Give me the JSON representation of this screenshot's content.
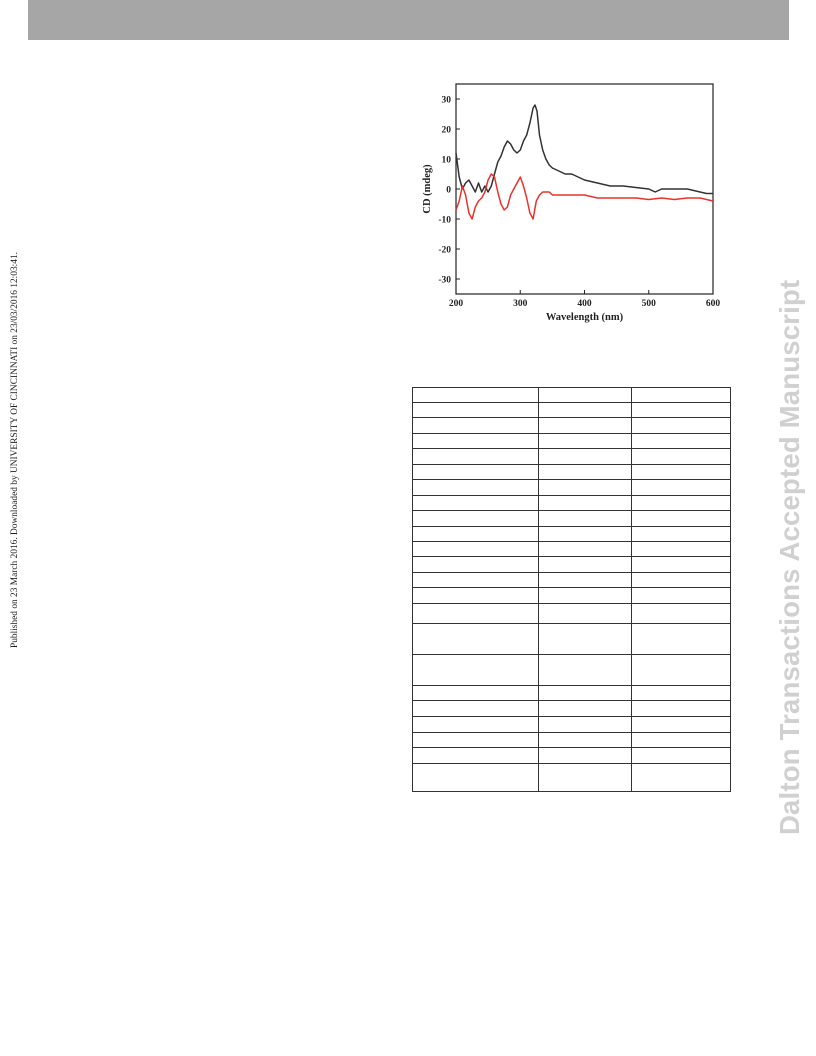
{
  "side_note": "Published on 23 March 2016. Downloaded by UNIVERSITY OF CINCINNATI on 23/03/2016 12:03:41.",
  "watermark": "Dalton Transactions Accepted Manuscript",
  "colors": {
    "header_bar": "#a6a6a6",
    "watermark": "#d0d0d0",
    "series_black": "#333333",
    "series_red": "#e8332c"
  },
  "chart_data": {
    "type": "line",
    "title": "",
    "xlabel": "Wavelength (nm)",
    "ylabel": "CD (mdeg)",
    "xlim": [
      200,
      600
    ],
    "ylim": [
      -35,
      35
    ],
    "xticks": [
      200,
      300,
      400,
      500,
      600
    ],
    "yticks": [
      -30,
      -20,
      -10,
      0,
      10,
      20,
      30
    ],
    "grid": false,
    "legend": "none",
    "series": [
      {
        "color": "#333333",
        "x": [
          200,
          205,
          210,
          215,
          220,
          225,
          230,
          235,
          240,
          245,
          250,
          255,
          260,
          265,
          270,
          275,
          280,
          285,
          290,
          295,
          300,
          305,
          310,
          315,
          320,
          323,
          326,
          330,
          335,
          340,
          345,
          350,
          360,
          370,
          380,
          390,
          400,
          420,
          440,
          460,
          480,
          500,
          510,
          520,
          540,
          560,
          580,
          590,
          600
        ],
        "y": [
          12,
          4,
          0,
          2,
          3,
          1,
          -1,
          2,
          -1,
          1,
          -1,
          1,
          5,
          9,
          11,
          14,
          16,
          15,
          13,
          12,
          13,
          16,
          18,
          22,
          27,
          28,
          26,
          18,
          13,
          10,
          8,
          7,
          6,
          5,
          5,
          4,
          3,
          2,
          1,
          1,
          0.5,
          0,
          -1,
          0,
          0,
          0,
          -1,
          -1.5,
          -1.5
        ]
      },
      {
        "color": "#e8332c",
        "x": [
          200,
          205,
          210,
          215,
          220,
          225,
          230,
          235,
          240,
          245,
          250,
          255,
          260,
          265,
          270,
          275,
          280,
          285,
          290,
          295,
          300,
          305,
          310,
          315,
          320,
          325,
          330,
          335,
          340,
          345,
          350,
          360,
          380,
          400,
          420,
          440,
          460,
          480,
          500,
          520,
          540,
          560,
          580,
          600
        ],
        "y": [
          -7,
          -4,
          1,
          -2,
          -8,
          -10,
          -6,
          -4,
          -3,
          -1,
          3,
          5,
          4,
          -1,
          -5,
          -7,
          -6,
          -2,
          0,
          2,
          4,
          1,
          -3,
          -8,
          -10,
          -4,
          -2,
          -1,
          -1,
          -1,
          -2,
          -2,
          -2,
          -2,
          -3,
          -3,
          -3,
          -3,
          -3.5,
          -3,
          -3.5,
          -3,
          -3,
          -4
        ]
      }
    ]
  },
  "table": {
    "columns": [
      "",
      "",
      ""
    ],
    "rows": [
      [
        "",
        "",
        ""
      ],
      [
        "",
        "",
        ""
      ],
      [
        "",
        "",
        ""
      ],
      [
        "",
        "",
        ""
      ],
      [
        "",
        "",
        ""
      ],
      [
        "",
        "",
        ""
      ],
      [
        "",
        "",
        ""
      ],
      [
        "",
        "",
        ""
      ],
      [
        "",
        "",
        ""
      ],
      [
        "",
        "",
        ""
      ],
      [
        "",
        "",
        ""
      ],
      [
        "",
        "",
        ""
      ],
      [
        "",
        "",
        ""
      ],
      [
        "",
        "",
        ""
      ],
      [
        "",
        "",
        ""
      ],
      [
        "",
        "",
        ""
      ],
      [
        "",
        "",
        ""
      ],
      [
        "",
        "",
        ""
      ],
      [
        "",
        "",
        ""
      ],
      [
        "",
        "",
        ""
      ],
      [
        "",
        "",
        ""
      ],
      [
        "",
        "",
        ""
      ],
      [
        "",
        "",
        ""
      ]
    ]
  }
}
